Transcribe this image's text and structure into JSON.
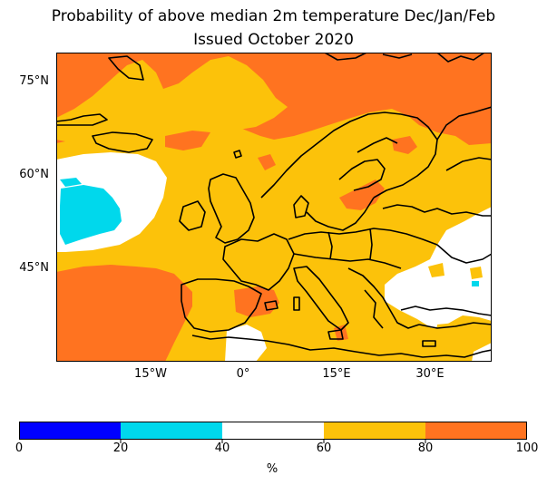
{
  "title_line1": "Probability of above median 2m temperature Dec/Jan/Feb",
  "title_line2": "Issued October 2020",
  "y_ticks": [
    "75°N",
    "60°N",
    "45°N"
  ],
  "x_ticks": [
    "15°W",
    "0°",
    "15°E",
    "30°E"
  ],
  "colorbar": {
    "label": "%",
    "ticks": [
      "0",
      "20",
      "40",
      "60",
      "80",
      "100"
    ],
    "bins": [
      {
        "range": "0-20",
        "color": "#0000ff"
      },
      {
        "range": "20-40",
        "color": "#00d8ec"
      },
      {
        "range": "40-60",
        "color": "#ffffff"
      },
      {
        "range": "60-80",
        "color": "#fcc20a"
      },
      {
        "range": "80-100",
        "color": "#ff7320"
      }
    ]
  },
  "map_colors": {
    "orange": "#ff7320",
    "yellow": "#fcc20a",
    "white": "#ffffff",
    "cyan": "#00d8ec",
    "coast": "#000000"
  }
}
